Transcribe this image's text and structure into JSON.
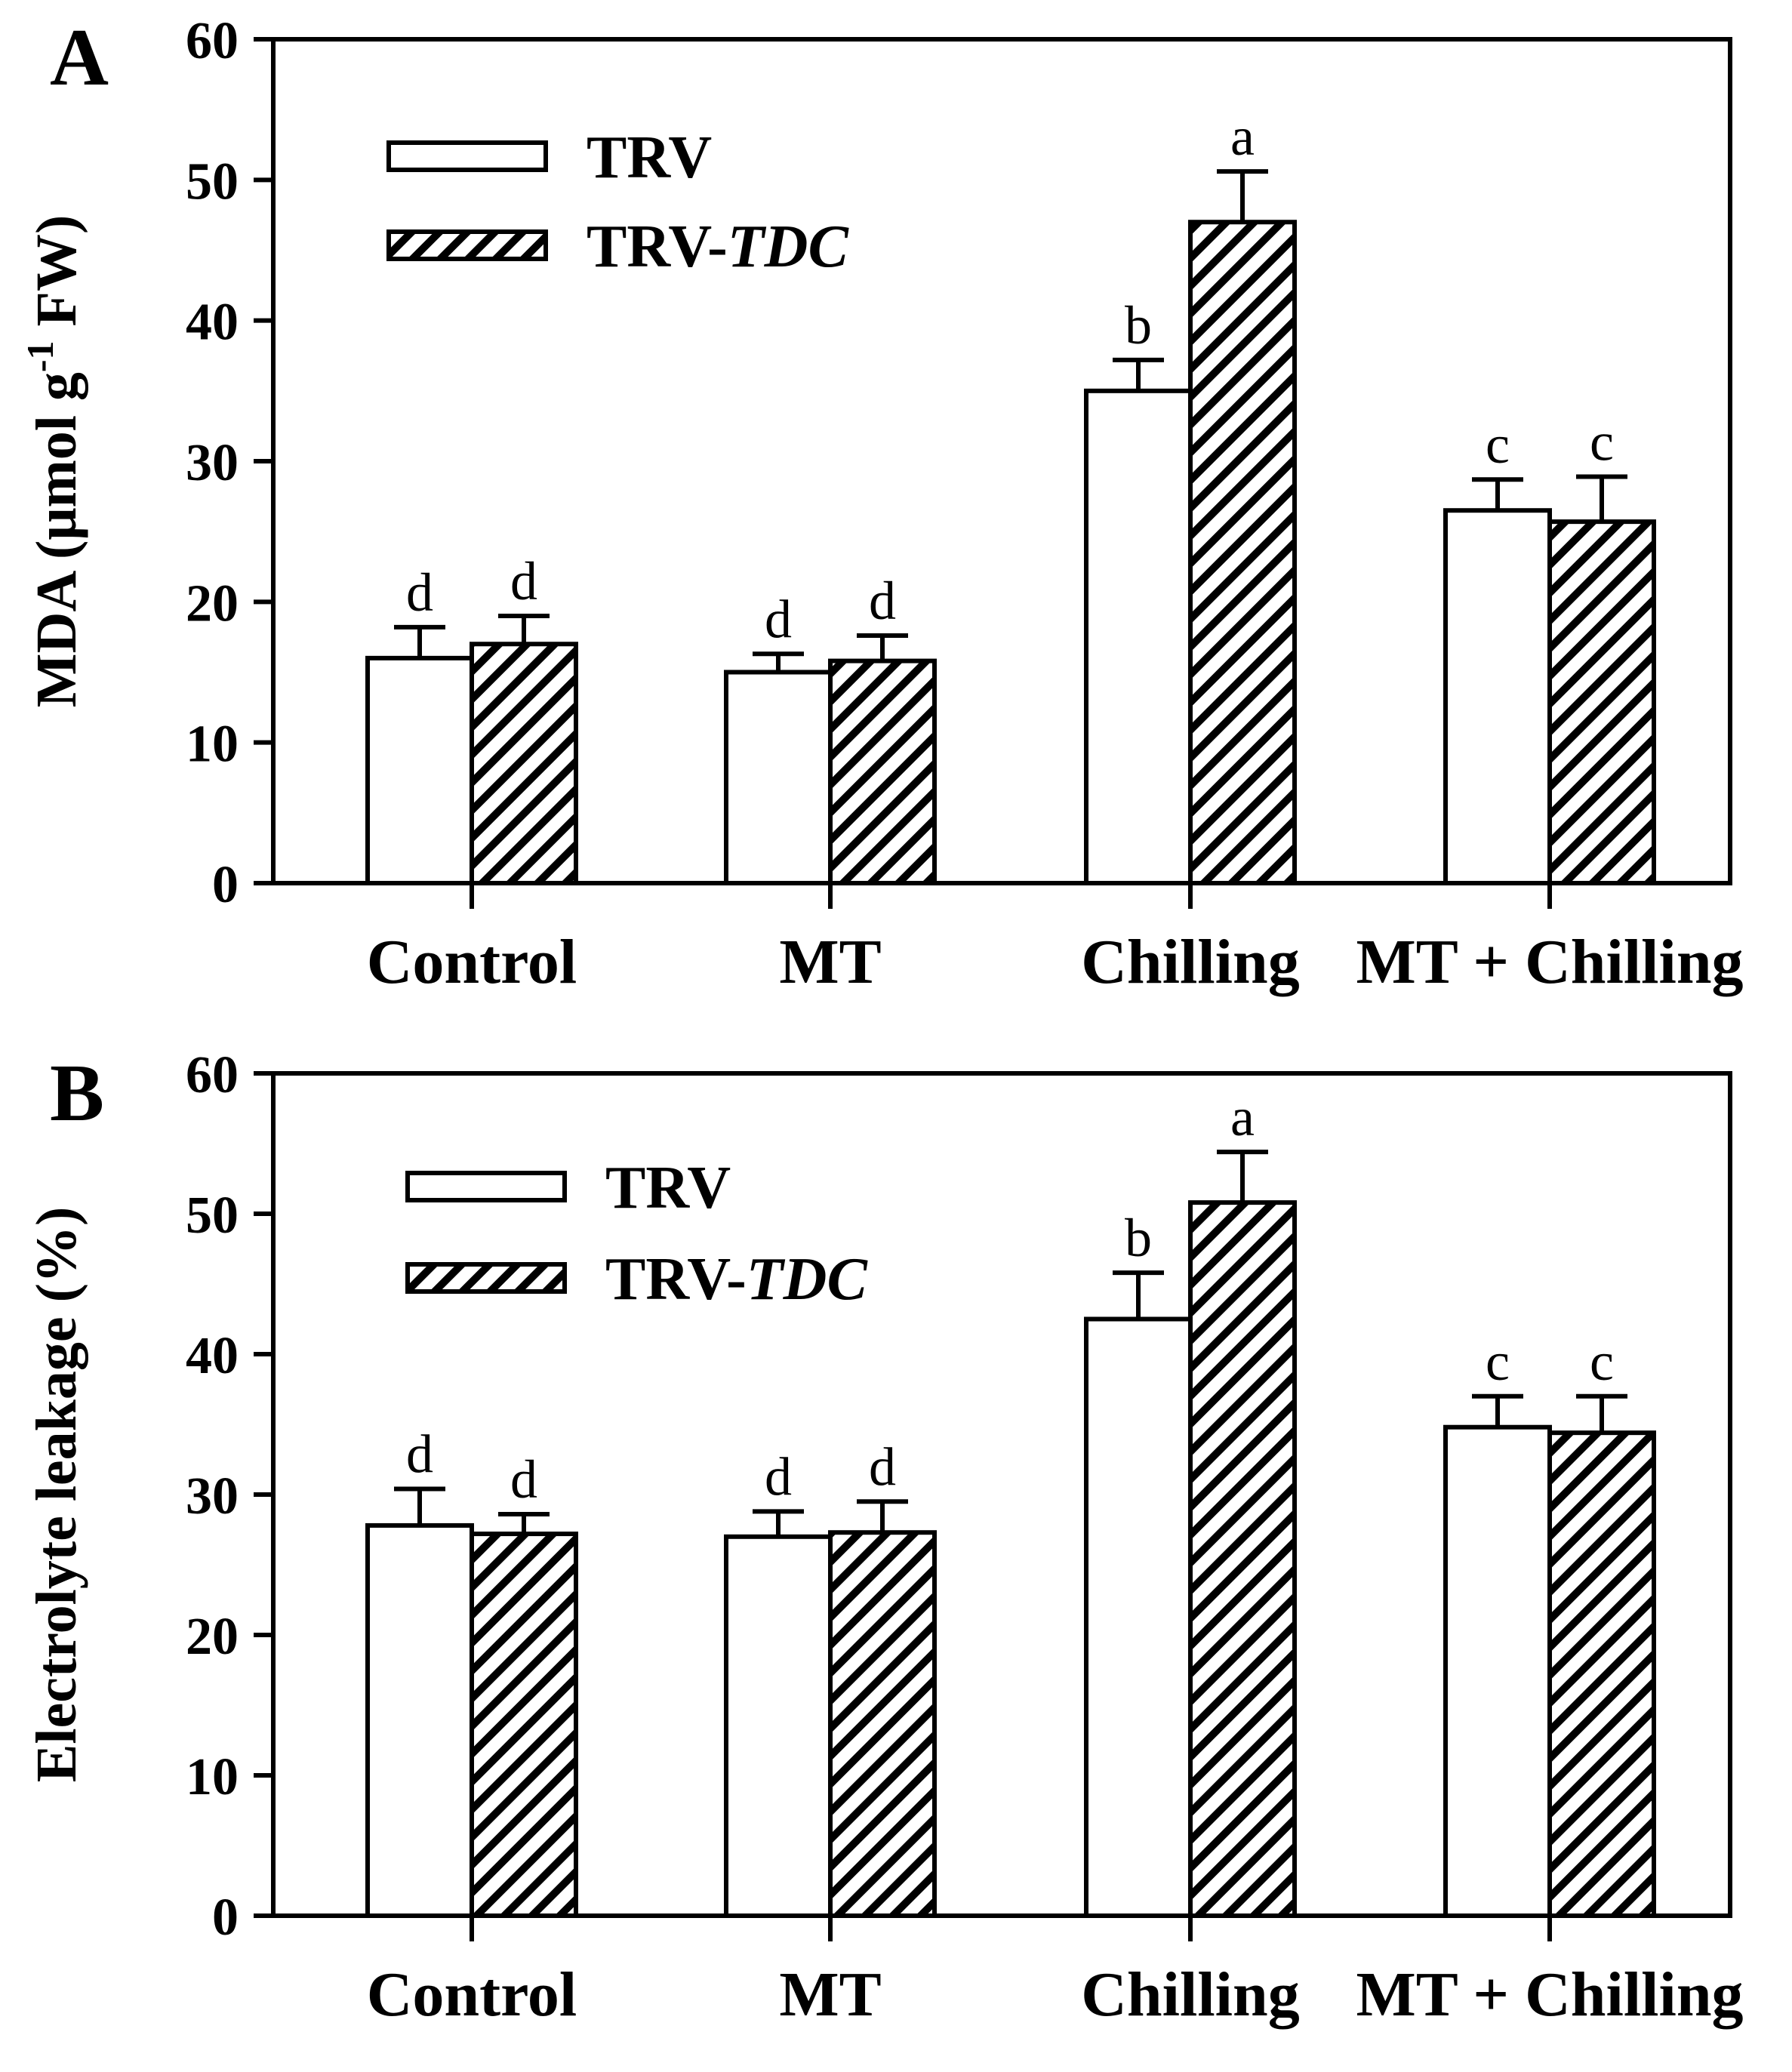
{
  "chart_data": [
    {
      "type": "bar",
      "panel_label": "A",
      "ylabel": {
        "main": "MDA (μmol g",
        "superscript": "-1",
        "suffix": " FW)"
      },
      "xlabel": "",
      "ylim": [
        0,
        60
      ],
      "yticks": [
        "0",
        "10",
        "20",
        "30",
        "40",
        "50",
        "60"
      ],
      "categories": [
        "Control",
        "MT",
        "Chilling",
        "MT + Chilling"
      ],
      "legend": {
        "position": "top-left",
        "entries": [
          {
            "prefix": "TRV",
            "italic": ""
          },
          {
            "prefix": "TRV-",
            "italic": "TDC"
          }
        ]
      },
      "series": [
        {
          "name": "TRV",
          "values": [
            16,
            15,
            35,
            26.5
          ],
          "errors": [
            2.2,
            1.3,
            2.2,
            2.2
          ],
          "letters": [
            "d",
            "d",
            "b",
            "c"
          ]
        },
        {
          "name": "TRV-TDC",
          "values": [
            17,
            15.8,
            47,
            25.7
          ],
          "errors": [
            2.0,
            1.8,
            3.6,
            3.2
          ],
          "letters": [
            "d",
            "d",
            "a",
            "c"
          ]
        }
      ]
    },
    {
      "type": "bar",
      "panel_label": "B",
      "ylabel": {
        "main": "Electrolyte leakage (%)",
        "superscript": "",
        "suffix": ""
      },
      "xlabel": "",
      "ylim": [
        0,
        60
      ],
      "yticks": [
        "0",
        "10",
        "20",
        "30",
        "40",
        "50",
        "60"
      ],
      "categories": [
        "Control",
        "MT",
        "Chilling",
        "MT + Chilling"
      ],
      "legend": {
        "position": "top-left",
        "entries": [
          {
            "prefix": "TRV",
            "italic": ""
          },
          {
            "prefix": "TRV-",
            "italic": "TDC"
          }
        ]
      },
      "series": [
        {
          "name": "TRV",
          "values": [
            27.8,
            27,
            42.5,
            34.8
          ],
          "errors": [
            2.6,
            1.8,
            3.3,
            2.2
          ],
          "letters": [
            "d",
            "d",
            "b",
            "c"
          ]
        },
        {
          "name": "TRV-TDC",
          "values": [
            27.2,
            27.3,
            50.8,
            34.4
          ],
          "errors": [
            1.4,
            2.2,
            3.6,
            2.6
          ],
          "letters": [
            "d",
            "d",
            "a",
            "c"
          ]
        }
      ]
    }
  ]
}
